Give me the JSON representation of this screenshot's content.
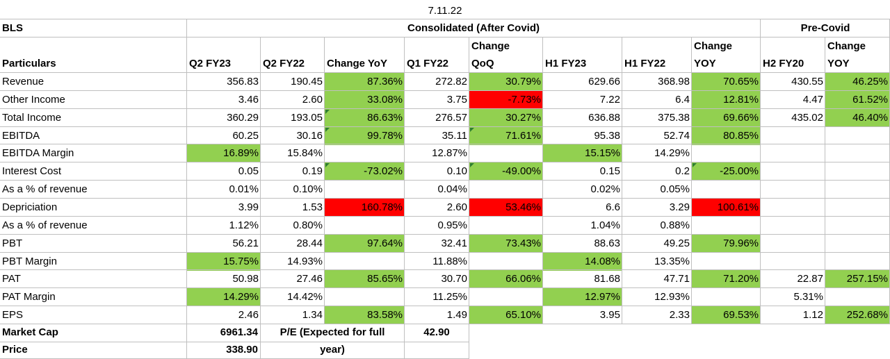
{
  "date": "7.11.22",
  "company": "BLS",
  "group_consolidated": "Consolidated (After Covid)",
  "group_precovid": "Pre-Covid",
  "headers": {
    "particulars": "Particulars",
    "q2fy23": "Q2 FY23",
    "q2fy22": "Q2 FY22",
    "chg_yoy": "Change YoY",
    "q1fy22": "Q1 FY22",
    "chg_qoq_1": "Change",
    "chg_qoq_2": "QoQ",
    "h1fy23": "H1 FY23",
    "h1fy22": "H1 FY22",
    "chg_h1_1": "Change",
    "chg_h1_2": "YOY",
    "h2fy20": "H2 FY20",
    "chg_pre_1": "Change",
    "chg_pre_2": "YOY"
  },
  "rows": [
    {
      "label": "Revenue",
      "v": [
        "356.83",
        "190.45",
        "87.36%",
        "272.82",
        "30.79%",
        "629.66",
        "368.98",
        "70.65%",
        "430.55",
        "46.25%"
      ]
    },
    {
      "label": "Other Income",
      "v": [
        "3.46",
        "2.60",
        "33.08%",
        "3.75",
        "-7.73%",
        "7.22",
        "6.4",
        "12.81%",
        "4.47",
        "61.52%"
      ]
    },
    {
      "label": "Total Income",
      "v": [
        "360.29",
        "193.05",
        "86.63%",
        "276.57",
        "30.27%",
        "636.88",
        "375.38",
        "69.66%",
        "435.02",
        "46.40%"
      ]
    },
    {
      "label": "EBITDA",
      "v": [
        "60.25",
        "30.16",
        "99.78%",
        "35.11",
        "71.61%",
        "95.38",
        "52.74",
        "80.85%",
        "",
        ""
      ]
    },
    {
      "label": "EBITDA Margin",
      "v": [
        "16.89%",
        "15.84%",
        "",
        "12.87%",
        "",
        "15.15%",
        "14.29%",
        "",
        "",
        ""
      ]
    },
    {
      "label": "Interest Cost",
      "v": [
        "0.05",
        "0.19",
        "-73.02%",
        "0.10",
        "-49.00%",
        "0.15",
        "0.2",
        "-25.00%",
        "",
        ""
      ]
    },
    {
      "label": "As a % of revenue",
      "v": [
        "0.01%",
        "0.10%",
        "",
        "0.04%",
        "",
        "0.02%",
        "0.05%",
        "",
        "",
        ""
      ]
    },
    {
      "label": "Depriciation",
      "v": [
        "3.99",
        "1.53",
        "160.78%",
        "2.60",
        "53.46%",
        "6.6",
        "3.29",
        "100.61%",
        "",
        ""
      ]
    },
    {
      "label": "As a % of revenue",
      "v": [
        "1.12%",
        "0.80%",
        "",
        "0.95%",
        "",
        "1.04%",
        "0.88%",
        "",
        "",
        ""
      ]
    },
    {
      "label": "PBT",
      "v": [
        "56.21",
        "28.44",
        "97.64%",
        "32.41",
        "73.43%",
        "88.63",
        "49.25",
        "79.96%",
        "",
        ""
      ]
    },
    {
      "label": "PBT Margin",
      "v": [
        "15.75%",
        "14.93%",
        "",
        "11.88%",
        "",
        "14.08%",
        "13.35%",
        "",
        "",
        ""
      ]
    },
    {
      "label": "PAT",
      "v": [
        "50.98",
        "27.46",
        "85.65%",
        "30.70",
        "66.06%",
        "81.68",
        "47.71",
        "71.20%",
        "22.87",
        "257.15%"
      ]
    },
    {
      "label": "PAT Margin",
      "v": [
        "14.29%",
        "14.42%",
        "",
        "11.25%",
        "",
        "12.97%",
        "12.93%",
        "",
        "5.31%",
        ""
      ]
    },
    {
      "label": "EPS",
      "v": [
        "2.46",
        "1.34",
        "83.58%",
        "1.49",
        "65.10%",
        "3.95",
        "2.33",
        "69.53%",
        "1.12",
        "252.68%"
      ]
    }
  ],
  "market_cap_label": "Market Cap",
  "market_cap_value": "6961.34",
  "pe_label_1": "P/E (Expected for full",
  "pe_label_2": "year)",
  "pe_value": "42.90",
  "price_label": "Price",
  "price_value": "338.90",
  "colors": {
    "green": "#92d050",
    "red": "#ff0000",
    "gridline": "#bfbfbf",
    "error_triangle": "#2e7d32"
  }
}
